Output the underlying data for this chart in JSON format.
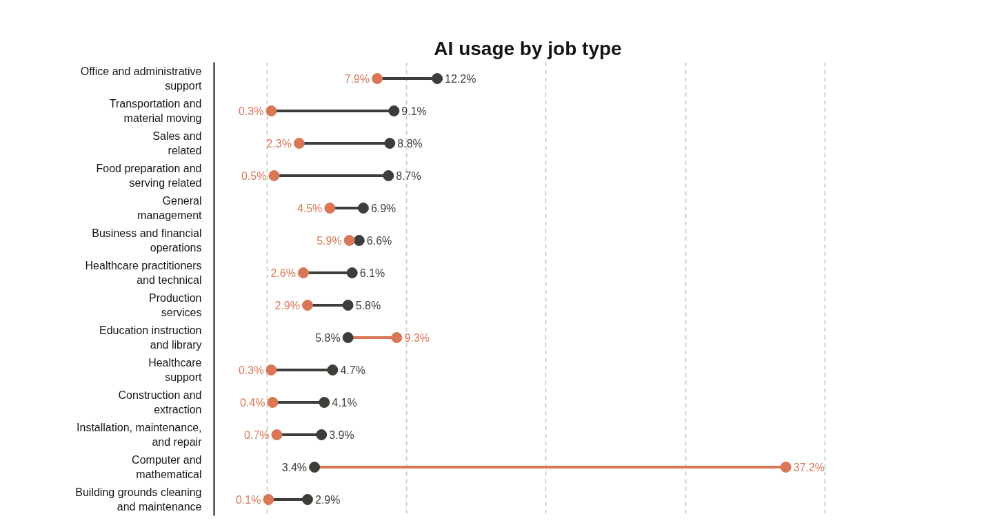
{
  "chart_data": {
    "type": "scatter",
    "title": "AI usage by job type",
    "orientation": "horizontal",
    "categories": [
      "Office and administrative\nsupport",
      "Transportation and\nmaterial moving",
      "Sales and\nrelated",
      "Food preparation and\nserving related",
      "General\nmanagement",
      "Business and financial\noperations",
      "Healthcare practitioners\nand technical",
      "Production\nservices",
      "Education instruction\nand library",
      "Healthcare\nsupport",
      "Construction and\nextraction",
      "Installation, maintenance,\nand repair",
      "Computer and\nmathematical",
      "Building grounds cleaning\nand maintenance"
    ],
    "series": [
      {
        "color": "#3d3d3a",
        "values": [
          12.2,
          9.1,
          8.8,
          8.7,
          6.9,
          6.6,
          6.1,
          5.8,
          5.8,
          4.7,
          4.1,
          3.9,
          3.4,
          2.9
        ],
        "value_labels": [
          "12.2%",
          "9.1%",
          "8.8%",
          "8.7%",
          "6.9%",
          "6.6%",
          "6.1%",
          "5.8%",
          "5.8%",
          "4.7%",
          "4.1%",
          "3.9%",
          "3.4%",
          "2.9%"
        ]
      },
      {
        "color": "#d97757",
        "values": [
          7.9,
          0.3,
          2.3,
          0.5,
          4.5,
          5.9,
          2.6,
          2.9,
          9.3,
          0.3,
          0.4,
          0.7,
          37.2,
          0.1
        ],
        "value_labels": [
          "7.9%",
          "0.3%",
          "2.3%",
          "0.5%",
          "4.5%",
          "5.9%",
          "2.6%",
          "2.9%",
          "9.3%",
          "0.3%",
          "0.4%",
          "0.7%",
          "37.2%",
          "0.1%"
        ]
      }
    ],
    "xticks": [
      {
        "value": 0,
        "label": null
      },
      {
        "value": 10,
        "label": null
      },
      {
        "value": 20,
        "label": null
      },
      {
        "value": 30,
        "label": null
      },
      {
        "value": 40,
        "label": null
      }
    ],
    "grid": "x",
    "tick_labels": "y",
    "marker": "circle"
  }
}
